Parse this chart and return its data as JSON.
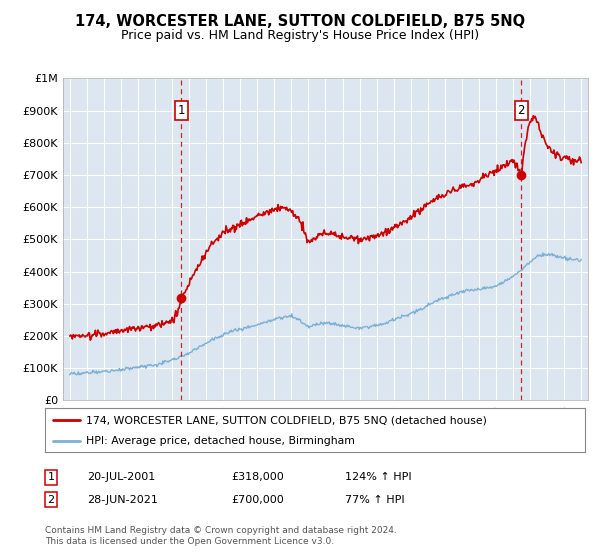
{
  "title": "174, WORCESTER LANE, SUTTON COLDFIELD, B75 5NQ",
  "subtitle": "Price paid vs. HM Land Registry's House Price Index (HPI)",
  "ylim": [
    0,
    1000000
  ],
  "yticks": [
    0,
    100000,
    200000,
    300000,
    400000,
    500000,
    600000,
    700000,
    800000,
    900000,
    1000000
  ],
  "ytick_labels": [
    "£0",
    "£100K",
    "£200K",
    "£300K",
    "£400K",
    "£500K",
    "£600K",
    "£700K",
    "£800K",
    "£900K",
    "£1M"
  ],
  "background_color": "#ffffff",
  "plot_bg_color": "#dce6f0",
  "grid_color": "#ffffff",
  "red_line_color": "#cc0000",
  "blue_line_color": "#7bafd4",
  "marker1_date_x": 2001.55,
  "marker1_price": 318000,
  "marker2_date_x": 2021.49,
  "marker2_price": 700000,
  "legend_line1": "174, WORCESTER LANE, SUTTON COLDFIELD, B75 5NQ (detached house)",
  "legend_line2": "HPI: Average price, detached house, Birmingham",
  "footer": "Contains HM Land Registry data © Crown copyright and database right 2024.\nThis data is licensed under the Open Government Licence v3.0.",
  "xmin": 1994.6,
  "xmax": 2025.4,
  "red_anchors": [
    [
      1995.0,
      198000
    ],
    [
      1995.5,
      200000
    ],
    [
      1996.0,
      202000
    ],
    [
      1996.5,
      205000
    ],
    [
      1997.0,
      208000
    ],
    [
      1997.5,
      212000
    ],
    [
      1998.0,
      218000
    ],
    [
      1998.5,
      222000
    ],
    [
      1999.0,
      225000
    ],
    [
      1999.5,
      228000
    ],
    [
      2000.0,
      232000
    ],
    [
      2000.5,
      238000
    ],
    [
      2001.0,
      248000
    ],
    [
      2001.3,
      270000
    ],
    [
      2001.55,
      318000
    ],
    [
      2002.0,
      365000
    ],
    [
      2002.5,
      415000
    ],
    [
      2003.0,
      460000
    ],
    [
      2003.5,
      495000
    ],
    [
      2004.0,
      520000
    ],
    [
      2004.5,
      535000
    ],
    [
      2005.0,
      545000
    ],
    [
      2005.5,
      560000
    ],
    [
      2006.0,
      575000
    ],
    [
      2006.5,
      585000
    ],
    [
      2007.0,
      595000
    ],
    [
      2007.5,
      600000
    ],
    [
      2008.0,
      590000
    ],
    [
      2008.5,
      560000
    ],
    [
      2009.0,
      490000
    ],
    [
      2009.5,
      510000
    ],
    [
      2010.0,
      520000
    ],
    [
      2010.5,
      515000
    ],
    [
      2011.0,
      510000
    ],
    [
      2011.5,
      505000
    ],
    [
      2012.0,
      500000
    ],
    [
      2012.5,
      505000
    ],
    [
      2013.0,
      510000
    ],
    [
      2013.5,
      520000
    ],
    [
      2014.0,
      535000
    ],
    [
      2014.5,
      550000
    ],
    [
      2015.0,
      570000
    ],
    [
      2015.5,
      590000
    ],
    [
      2016.0,
      610000
    ],
    [
      2016.5,
      625000
    ],
    [
      2017.0,
      640000
    ],
    [
      2017.5,
      650000
    ],
    [
      2018.0,
      660000
    ],
    [
      2018.5,
      670000
    ],
    [
      2019.0,
      680000
    ],
    [
      2019.5,
      700000
    ],
    [
      2020.0,
      715000
    ],
    [
      2020.5,
      730000
    ],
    [
      2021.0,
      745000
    ],
    [
      2021.49,
      700000
    ],
    [
      2021.6,
      760000
    ],
    [
      2021.8,
      820000
    ],
    [
      2022.0,
      860000
    ],
    [
      2022.2,
      880000
    ],
    [
      2022.4,
      870000
    ],
    [
      2022.6,
      840000
    ],
    [
      2022.8,
      810000
    ],
    [
      2023.0,
      790000
    ],
    [
      2023.3,
      770000
    ],
    [
      2023.6,
      760000
    ],
    [
      2024.0,
      755000
    ],
    [
      2024.5,
      750000
    ],
    [
      2025.0,
      748000
    ]
  ],
  "blue_anchors": [
    [
      1995.0,
      82000
    ],
    [
      1995.5,
      83000
    ],
    [
      1996.0,
      85000
    ],
    [
      1996.5,
      87000
    ],
    [
      1997.0,
      90000
    ],
    [
      1997.5,
      93000
    ],
    [
      1998.0,
      97000
    ],
    [
      1998.5,
      100000
    ],
    [
      1999.0,
      103000
    ],
    [
      1999.5,
      107000
    ],
    [
      2000.0,
      112000
    ],
    [
      2000.5,
      118000
    ],
    [
      2001.0,
      125000
    ],
    [
      2001.5,
      135000
    ],
    [
      2002.0,
      148000
    ],
    [
      2002.5,
      163000
    ],
    [
      2003.0,
      178000
    ],
    [
      2003.5,
      193000
    ],
    [
      2004.0,
      205000
    ],
    [
      2004.5,
      215000
    ],
    [
      2005.0,
      222000
    ],
    [
      2005.5,
      228000
    ],
    [
      2006.0,
      235000
    ],
    [
      2006.5,
      243000
    ],
    [
      2007.0,
      252000
    ],
    [
      2007.5,
      258000
    ],
    [
      2008.0,
      260000
    ],
    [
      2008.5,
      248000
    ],
    [
      2009.0,
      228000
    ],
    [
      2009.5,
      235000
    ],
    [
      2010.0,
      242000
    ],
    [
      2010.5,
      238000
    ],
    [
      2011.0,
      232000
    ],
    [
      2011.5,
      228000
    ],
    [
      2012.0,
      225000
    ],
    [
      2012.5,
      228000
    ],
    [
      2013.0,
      233000
    ],
    [
      2013.5,
      240000
    ],
    [
      2014.0,
      250000
    ],
    [
      2014.5,
      260000
    ],
    [
      2015.0,
      270000
    ],
    [
      2015.5,
      282000
    ],
    [
      2016.0,
      295000
    ],
    [
      2016.5,
      308000
    ],
    [
      2017.0,
      320000
    ],
    [
      2017.5,
      330000
    ],
    [
      2018.0,
      338000
    ],
    [
      2018.5,
      342000
    ],
    [
      2019.0,
      345000
    ],
    [
      2019.5,
      350000
    ],
    [
      2020.0,
      355000
    ],
    [
      2020.5,
      368000
    ],
    [
      2021.0,
      385000
    ],
    [
      2021.5,
      405000
    ],
    [
      2022.0,
      430000
    ],
    [
      2022.5,
      450000
    ],
    [
      2023.0,
      455000
    ],
    [
      2023.5,
      448000
    ],
    [
      2024.0,
      442000
    ],
    [
      2024.5,
      438000
    ],
    [
      2025.0,
      435000
    ]
  ]
}
